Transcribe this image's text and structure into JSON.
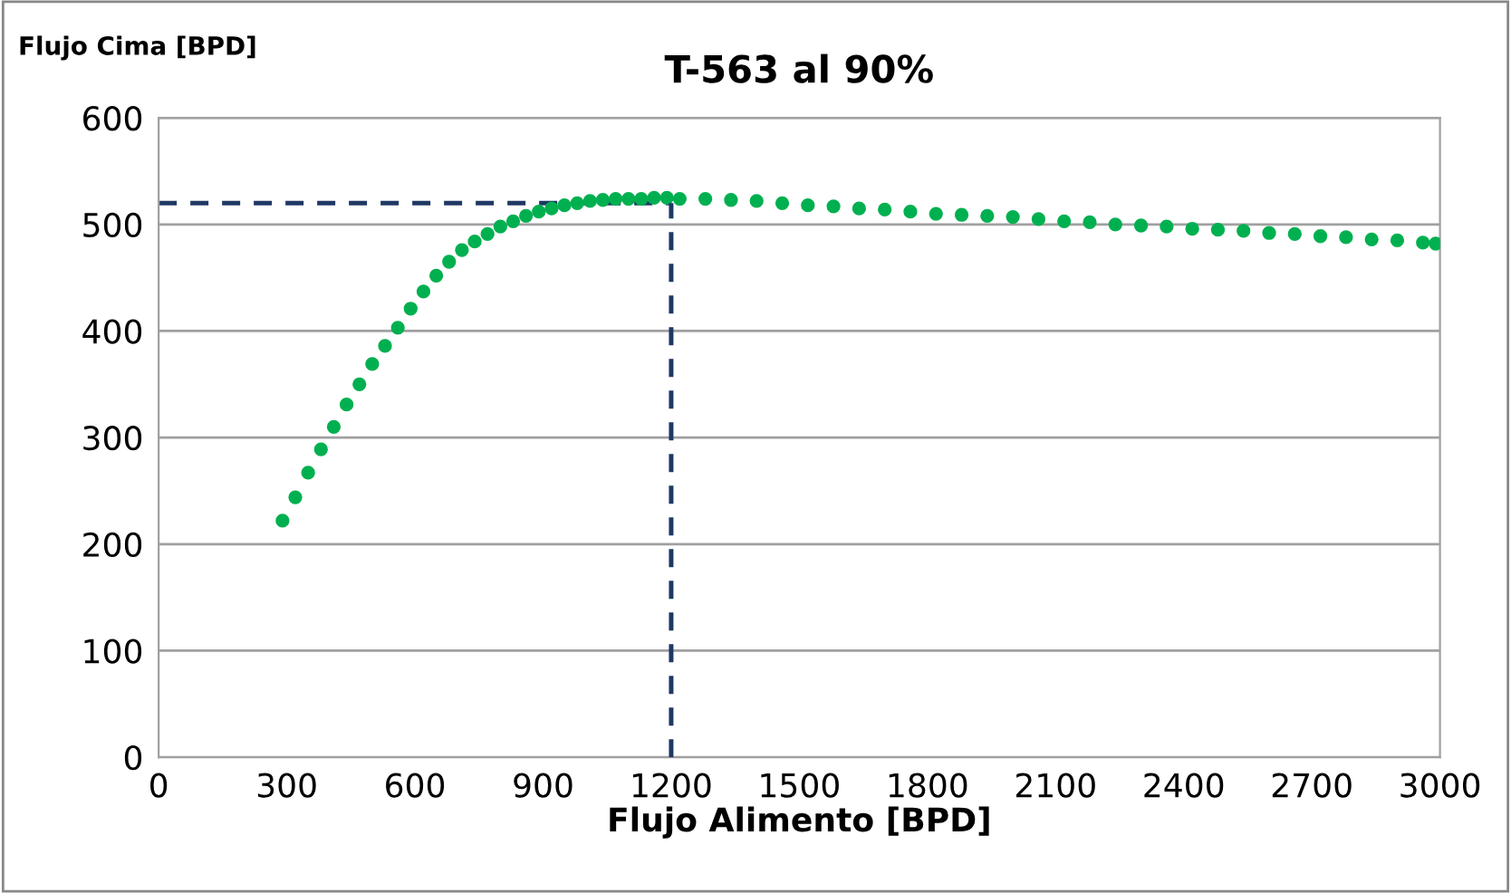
{
  "chart_data": {
    "type": "scatter",
    "title": "T-563 al 90%",
    "xlabel": "Flujo Alimento [BPD]",
    "ylabel": "Flujo Cima [BPD]",
    "x": [
      290,
      320,
      350,
      380,
      410,
      440,
      470,
      500,
      530,
      560,
      590,
      620,
      650,
      680,
      710,
      740,
      770,
      800,
      830,
      860,
      890,
      920,
      950,
      980,
      1010,
      1040,
      1070,
      1100,
      1130,
      1160,
      1190,
      1220,
      1280,
      1340,
      1400,
      1460,
      1520,
      1580,
      1640,
      1700,
      1760,
      1820,
      1880,
      1940,
      2000,
      2060,
      2120,
      2180,
      2240,
      2300,
      2360,
      2420,
      2480,
      2540,
      2600,
      2660,
      2720,
      2780,
      2840,
      2900,
      2960,
      2990
    ],
    "series": [
      {
        "color": "#00b050",
        "values": [
          222,
          244,
          267,
          289,
          310,
          331,
          350,
          369,
          386,
          403,
          421,
          437,
          452,
          465,
          476,
          484,
          491,
          498,
          503,
          508,
          512,
          515,
          518,
          520,
          522,
          523,
          524,
          524,
          524,
          525,
          525,
          524,
          524,
          523,
          522,
          520,
          518,
          517,
          515,
          514,
          512,
          510,
          509,
          508,
          507,
          505,
          503,
          502,
          500,
          499,
          498,
          496,
          495,
          494,
          492,
          491,
          489,
          488,
          486,
          485,
          483,
          482
        ]
      }
    ],
    "xlim": [
      0,
      3000
    ],
    "xticks": [
      0,
      300,
      600,
      900,
      1200,
      1500,
      1800,
      2100,
      2400,
      2700,
      3000
    ],
    "ylim": [
      0,
      600
    ],
    "yticks": [
      0,
      100,
      200,
      300,
      400,
      500,
      600
    ],
    "grid": "y",
    "marker": "circle",
    "legend": false,
    "ref_lines": [
      {
        "axis": "x",
        "value": 1200,
        "color": "#1f3864",
        "line_style": "dashed"
      },
      {
        "axis": "y",
        "value": 520,
        "color": "#1f3864",
        "line_style": "dashed"
      }
    ]
  }
}
